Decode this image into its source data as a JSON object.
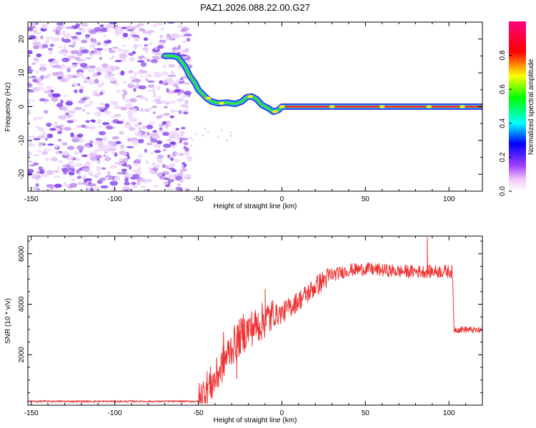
{
  "title": "PAZ1.2026.088.22.00.G27",
  "colors": {
    "trace": "#ee3333",
    "background": "#ffffff",
    "axis": "#000000"
  },
  "chart_data": [
    {
      "type": "heatmap",
      "name": "spectrogram",
      "xlabel": "Height of straight line (km)",
      "ylabel": "Frequency (Hz)",
      "xlim": [
        -152,
        120
      ],
      "ylim": [
        -25,
        25
      ],
      "xticks": [
        -150,
        -100,
        -50,
        0,
        50,
        100
      ],
      "yticks": [
        -20,
        -10,
        0,
        10,
        20
      ],
      "noise_region_x": [
        -152,
        -55
      ],
      "ridge": [
        [
          -70,
          15
        ],
        [
          -65,
          15
        ],
        [
          -62,
          14.5
        ],
        [
          -58,
          12
        ],
        [
          -55,
          9
        ],
        [
          -52,
          7
        ],
        [
          -50,
          5
        ],
        [
          -48,
          4
        ],
        [
          -45,
          2.5
        ],
        [
          -42,
          1.5
        ],
        [
          -38,
          1
        ],
        [
          -33,
          1.2
        ],
        [
          -28,
          0.8
        ],
        [
          -24,
          1.5
        ],
        [
          -21,
          2.8
        ],
        [
          -18,
          3
        ],
        [
          -15,
          2.2
        ],
        [
          -12,
          0.5
        ],
        [
          -8,
          -0.5
        ],
        [
          -5,
          -1.5
        ],
        [
          -2,
          -1
        ],
        [
          0,
          0
        ],
        [
          120,
          0
        ]
      ],
      "colorbar": {
        "label": "Normalized spectral amplitude",
        "ticks": [
          "0.0",
          "0.2",
          "0.4",
          "0.6",
          "0.8"
        ],
        "tick_values": [
          0,
          0.2,
          0.4,
          0.6,
          0.8
        ],
        "range": [
          0,
          1
        ]
      }
    },
    {
      "type": "line",
      "name": "snr",
      "xlabel": "Height of straight line (km)",
      "ylabel": "SNR (10 * v/v)",
      "xlim": [
        -152,
        120
      ],
      "ylim": [
        0,
        6700
      ],
      "xticks": [
        -150,
        -100,
        -50,
        0,
        50,
        100
      ],
      "yticks": [
        2000,
        4000,
        6000
      ],
      "envelope": [
        [
          -152,
          150
        ],
        [
          -50,
          150
        ],
        [
          -48,
          300
        ],
        [
          -45,
          650
        ],
        [
          -40,
          1000
        ],
        [
          -35,
          1700
        ],
        [
          -30,
          2300
        ],
        [
          -25,
          2700
        ],
        [
          -20,
          3000
        ],
        [
          -15,
          3150
        ],
        [
          -10,
          3400
        ],
        [
          -5,
          3550
        ],
        [
          0,
          3650
        ],
        [
          5,
          3900
        ],
        [
          10,
          4150
        ],
        [
          15,
          4400
        ],
        [
          20,
          4700
        ],
        [
          25,
          4950
        ],
        [
          30,
          5150
        ],
        [
          35,
          5250
        ],
        [
          40,
          5350
        ],
        [
          50,
          5400
        ],
        [
          60,
          5350
        ],
        [
          70,
          5300
        ],
        [
          80,
          5300
        ],
        [
          90,
          5300
        ],
        [
          100,
          5300
        ],
        [
          102,
          5300
        ],
        [
          103,
          3000
        ],
        [
          110,
          3000
        ],
        [
          120,
          2950
        ]
      ],
      "spikes": [
        [
          -10,
          4600
        ],
        [
          -35,
          2900
        ],
        [
          -23,
          3600
        ],
        [
          87,
          6650
        ],
        [
          -27,
          1050
        ]
      ]
    }
  ]
}
